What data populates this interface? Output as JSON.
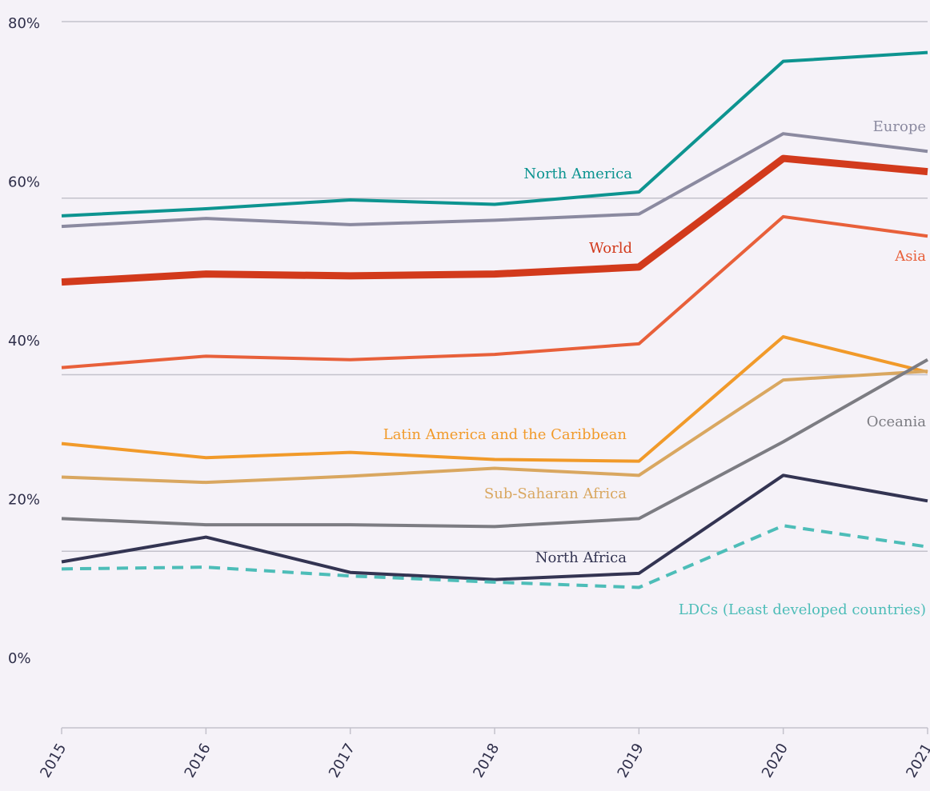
{
  "chart_data": {
    "type": "line",
    "x": [
      2015,
      2016,
      2017,
      2018,
      2019,
      2020,
      2021
    ],
    "xlim": [
      2015,
      2021
    ],
    "xticks": [
      2015,
      2016,
      2017,
      2018,
      2019,
      2020,
      2021
    ],
    "ylim": [
      0,
      80
    ],
    "yticks": [
      {
        "value": 0,
        "label": "0%"
      },
      {
        "value": 20,
        "label": "20%"
      },
      {
        "value": 40,
        "label": "40%"
      },
      {
        "value": 60,
        "label": "60%"
      },
      {
        "value": 80,
        "label": "80%"
      }
    ],
    "grid": true,
    "series": [
      {
        "name": "North America",
        "color": "#0d9490",
        "values": [
          58.0,
          58.8,
          59.8,
          59.3,
          60.7,
          75.5,
          76.5
        ]
      },
      {
        "name": "Europe",
        "color": "#8b8aa0",
        "values": [
          56.8,
          57.7,
          57.0,
          57.5,
          58.2,
          67.3,
          65.3
        ]
      },
      {
        "name": "World",
        "color": "#d23a1c",
        "values": [
          50.5,
          51.4,
          51.2,
          51.4,
          52.2,
          64.5,
          63.0
        ]
      },
      {
        "name": "Asia",
        "color": "#e8603a",
        "values": [
          40.8,
          42.1,
          41.7,
          42.3,
          43.5,
          57.9,
          55.7
        ]
      },
      {
        "name": "Latin America and the Caribbean",
        "color": "#f19a2a",
        "values": [
          32.2,
          30.6,
          31.2,
          30.4,
          30.2,
          44.3,
          40.3
        ]
      },
      {
        "name": "Sub-Saharan Africa",
        "color": "#d9a760",
        "values": [
          28.4,
          27.8,
          28.5,
          29.4,
          28.6,
          39.4,
          40.4
        ]
      },
      {
        "name": "Oceania",
        "color": "#7c7c82",
        "values": [
          23.7,
          23.0,
          23.0,
          22.8,
          23.7,
          32.4,
          41.7
        ]
      },
      {
        "name": "North Africa",
        "color": "#333452",
        "values": [
          18.8,
          21.6,
          17.6,
          16.8,
          17.5,
          28.6,
          25.7
        ]
      },
      {
        "name": "LDCs (Least developed countries)",
        "color": "#4dbdb8",
        "dashed": true,
        "values": [
          18.0,
          18.2,
          17.2,
          16.5,
          15.9,
          22.9,
          20.5
        ]
      }
    ]
  }
}
